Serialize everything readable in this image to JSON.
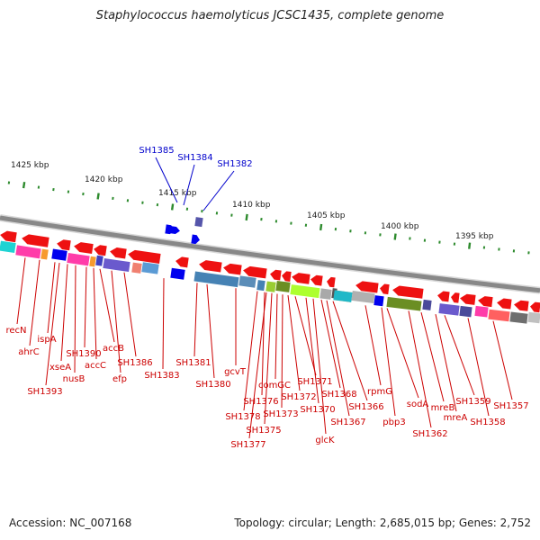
{
  "title": "Staphylococcus haemolyticus JCSC1435, complete genome",
  "accession": "Accession: NC_007168",
  "topology": "Topology: circular; Length: 2,685,015 bp; Genes: 2,752",
  "ruler_labels": [
    "1425 kbp",
    "1420 kbp",
    "1415 kbp",
    "1410 kbp",
    "1405 kbp",
    "1400 kbp",
    "1395 kbp"
  ],
  "top_gene_labels": [
    "SH1385",
    "SH1384",
    "SH1382"
  ],
  "bottom_gene_labels": [
    "recN",
    "ahrC",
    "ispA",
    "SH1393",
    "xseA",
    "nusB",
    "SH1390",
    "accC",
    "accB",
    "efp",
    "SH1386",
    "SH1383",
    "SH1381",
    "SH1380",
    "gcvT",
    "SH1378",
    "SH1376",
    "SH1377",
    "SH1375",
    "comGC",
    "SH1373",
    "SH1372",
    "SH1371",
    "SH1370",
    "glcK",
    "SH1368",
    "SH1367",
    "SH1366",
    "rpmG",
    "pbp3",
    "sodA",
    "SH1362",
    "mreB",
    "mreA",
    "SH1359",
    "SH1358",
    "SH1357"
  ],
  "colors": {
    "backbone": "#888888",
    "ruler_ticks": "#2e8b2e",
    "forward_label": "#0000cc",
    "reverse_label": "#cc0000",
    "reverse_gene": "#ee1111",
    "forward_gene": "#0000ee"
  }
}
